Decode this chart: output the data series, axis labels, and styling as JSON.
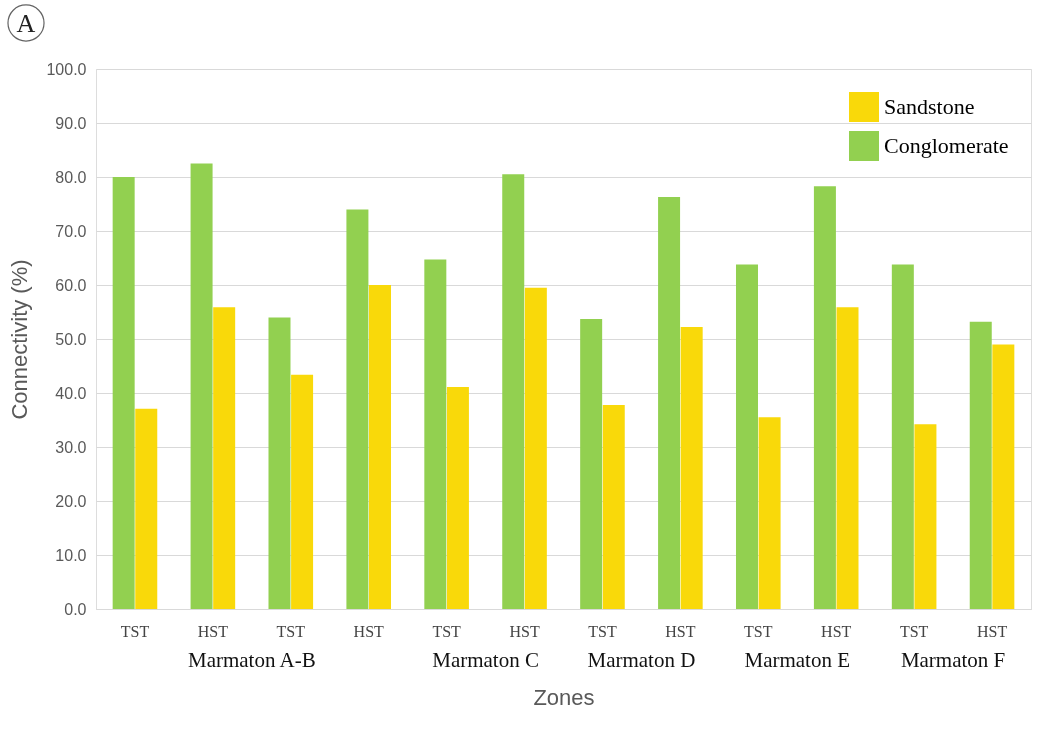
{
  "chart_data": {
    "type": "bar",
    "categories": [
      "TST",
      "HST",
      "TST",
      "HST",
      "TST",
      "HST",
      "TST",
      "HST",
      "TST",
      "HST",
      "TST",
      "HST"
    ],
    "series": [
      {
        "name": "Conglomerate",
        "color": "#92d050",
        "values": [
          80.0,
          82.5,
          54.0,
          74.0,
          64.7,
          80.5,
          53.7,
          76.3,
          63.8,
          78.3,
          63.8,
          53.2
        ]
      },
      {
        "name": "Sandstone",
        "color": "#f9d90a",
        "values": [
          37.1,
          55.9,
          43.4,
          60.0,
          41.1,
          59.5,
          37.8,
          52.2,
          35.5,
          55.9,
          34.2,
          49.0
        ]
      }
    ],
    "xlabel": "Zones",
    "ylabel": "Connectivity (%)",
    "ylim": [
      0,
      100
    ],
    "yticks": [
      {
        "value": 0,
        "label": "0.0"
      },
      {
        "value": 10,
        "label": "10.0"
      },
      {
        "value": 20,
        "label": "20.0"
      },
      {
        "value": 30,
        "label": "30.0"
      },
      {
        "value": 40,
        "label": "40.0"
      },
      {
        "value": 50,
        "label": "50.0"
      },
      {
        "value": 60,
        "label": "60.0"
      },
      {
        "value": 70,
        "label": "70.0"
      },
      {
        "value": 80,
        "label": "80.0"
      },
      {
        "value": 90,
        "label": "90.0"
      },
      {
        "value": 100,
        "label": "100.0"
      }
    ],
    "grid": "y",
    "legend": "top right",
    "annotations": [
      "A",
      "Marmaton A-B",
      "Marmaton C",
      "Marmaton D",
      "Marmaton E",
      "Marmaton F"
    ]
  }
}
